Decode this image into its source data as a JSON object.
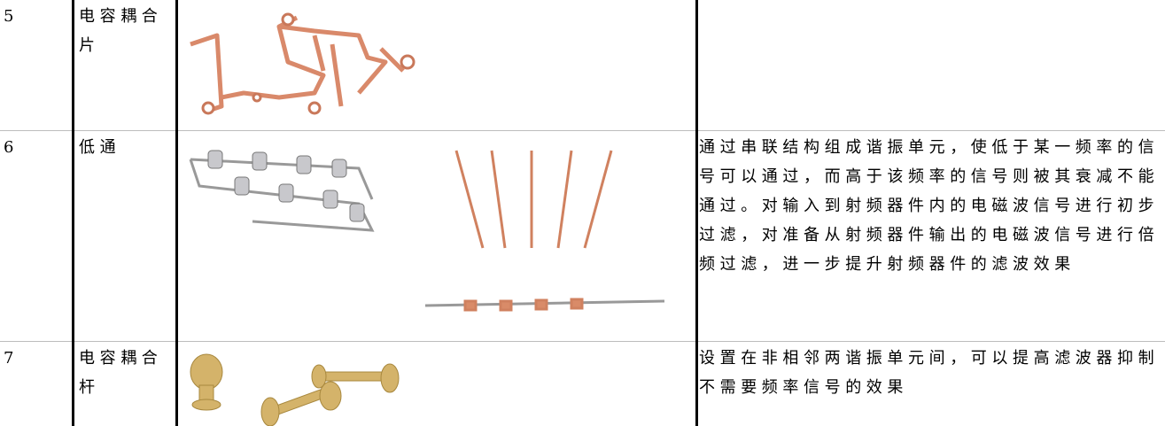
{
  "table": {
    "rows": [
      {
        "number": "5",
        "name": "电容耦合片"
      },
      {
        "number": "6",
        "name": "低通",
        "description": "通过串联结构组成谐振单元，使低于某一频率的信号可以通过，而高于该频率的信号则被其衰减不能通过。对输入到射频器件内的电磁波信号进行初步过滤，对准备从射频器件输出的电磁波信号进行倍频过滤，进一步提升射频器件的滤波效果"
      },
      {
        "number": "7",
        "name": "电容耦合杆",
        "description": "设置在非相邻两谐振单元间，可以提高滤波器抑制不需要频率信号的效果"
      }
    ]
  }
}
